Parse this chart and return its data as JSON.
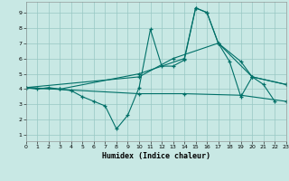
{
  "bg_color": "#c8e8e4",
  "grid_color": "#98c8c4",
  "line_color": "#007068",
  "xlabel": "Humidex (Indice chaleur)",
  "xlim": [
    0,
    23
  ],
  "ylim": [
    0.6,
    9.7
  ],
  "xticks": [
    0,
    1,
    2,
    3,
    4,
    5,
    6,
    7,
    8,
    9,
    10,
    11,
    12,
    13,
    14,
    15,
    16,
    17,
    18,
    19,
    20,
    21,
    22,
    23
  ],
  "yticks": [
    1,
    2,
    3,
    4,
    5,
    6,
    7,
    8,
    9
  ],
  "line1_x": [
    0,
    1,
    2,
    3,
    4,
    5,
    6,
    7,
    8,
    9,
    10,
    11,
    12,
    13,
    14,
    15,
    16,
    17,
    18,
    19,
    20,
    21,
    22
  ],
  "line1_y": [
    4.1,
    4.0,
    4.1,
    4.0,
    3.9,
    3.5,
    3.2,
    2.9,
    1.4,
    2.3,
    4.1,
    7.9,
    5.5,
    5.5,
    5.9,
    9.3,
    9.0,
    7.0,
    5.8,
    3.5,
    4.8,
    4.3,
    3.2
  ],
  "line2_x": [
    0,
    3,
    10,
    14,
    15,
    16,
    17,
    19,
    20,
    23
  ],
  "line2_y": [
    4.1,
    4.0,
    5.0,
    6.0,
    9.3,
    9.0,
    7.0,
    5.8,
    4.8,
    4.3
  ],
  "line3_x": [
    0,
    10,
    13,
    17,
    20,
    23
  ],
  "line3_y": [
    4.1,
    4.8,
    6.0,
    7.0,
    4.8,
    4.3
  ],
  "line4_x": [
    0,
    10,
    14,
    19,
    23
  ],
  "line4_y": [
    4.1,
    3.7,
    3.7,
    3.6,
    3.2
  ]
}
